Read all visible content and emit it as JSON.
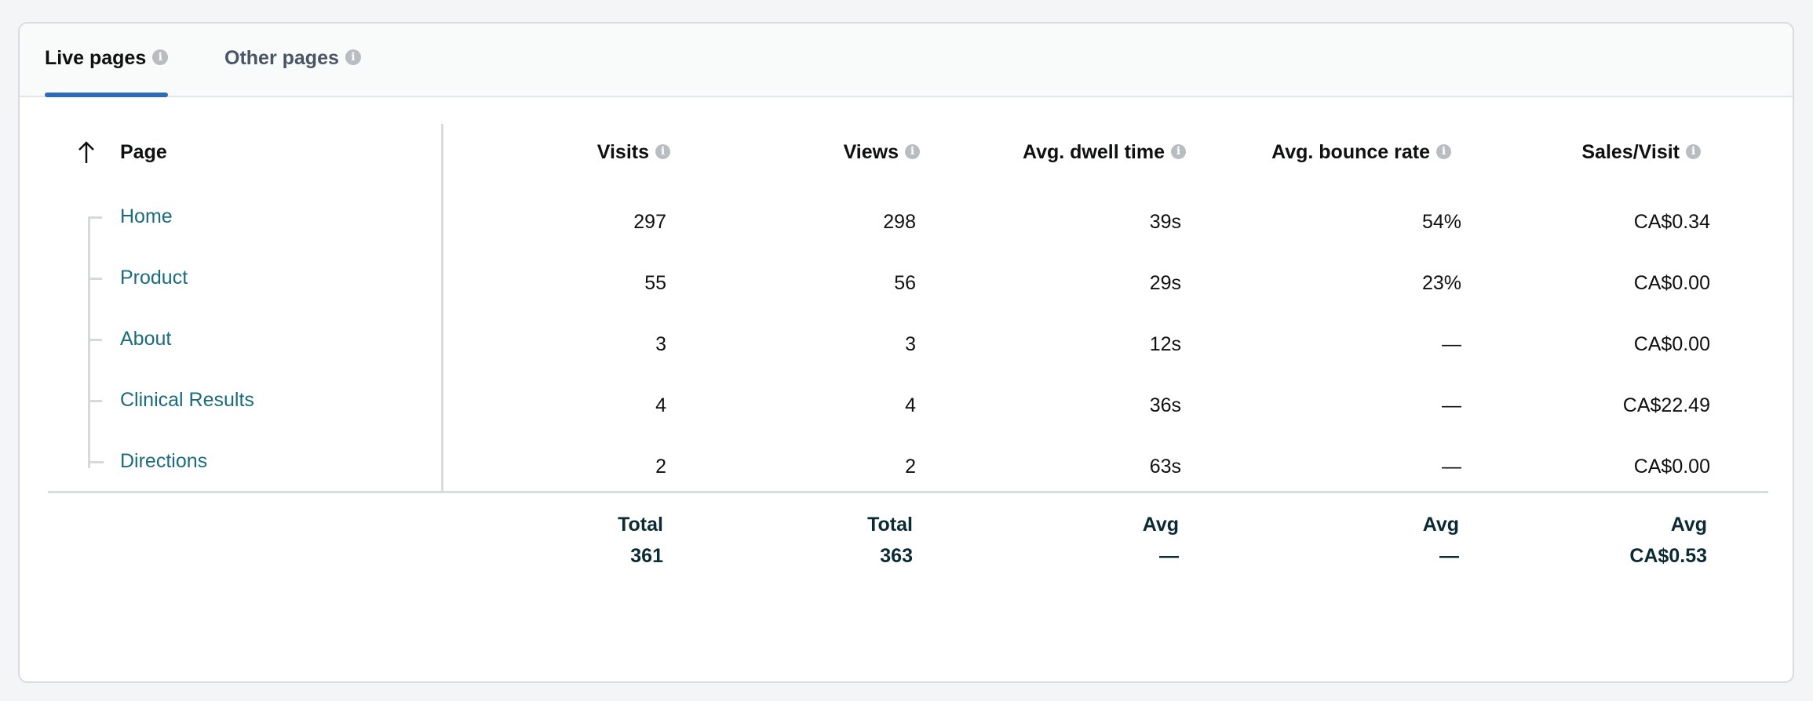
{
  "tabs": [
    {
      "label": "Live pages",
      "active": true
    },
    {
      "label": "Other pages",
      "active": false
    }
  ],
  "table": {
    "headers": {
      "page": "Page",
      "visits": "Visits",
      "views": "Views",
      "dwell": "Avg. dwell time",
      "bounce": "Avg. bounce rate",
      "sales": "Sales/Visit"
    },
    "sort": {
      "column": "Page",
      "direction": "ascending",
      "icon": "arrow-up-icon"
    },
    "rows": [
      {
        "page": "Home",
        "visits": "297",
        "views": "298",
        "dwell": "39s",
        "bounce": "54%",
        "sales": "CA$0.34"
      },
      {
        "page": "Product",
        "visits": "55",
        "views": "56",
        "dwell": "29s",
        "bounce": "23%",
        "sales": "CA$0.00"
      },
      {
        "page": "About",
        "visits": "3",
        "views": "3",
        "dwell": "12s",
        "bounce": "—",
        "sales": "CA$0.00"
      },
      {
        "page": "Clinical Results",
        "visits": "4",
        "views": "4",
        "dwell": "36s",
        "bounce": "—",
        "sales": "CA$22.49"
      },
      {
        "page": "Directions",
        "visits": "2",
        "views": "2",
        "dwell": "63s",
        "bounce": "—",
        "sales": "CA$0.00"
      }
    ],
    "footer": {
      "visits": {
        "label": "Total",
        "value": "361"
      },
      "views": {
        "label": "Total",
        "value": "363"
      },
      "dwell": {
        "label": "Avg",
        "value": "—"
      },
      "bounce": {
        "label": "Avg",
        "value": "—"
      },
      "sales": {
        "label": "Avg",
        "value": "CA$0.53"
      }
    }
  },
  "info_icon_glyph": "i",
  "colors": {
    "accent": "#2f6bb5",
    "link": "#1b6b7e",
    "footer_text": "#0b2a33"
  }
}
